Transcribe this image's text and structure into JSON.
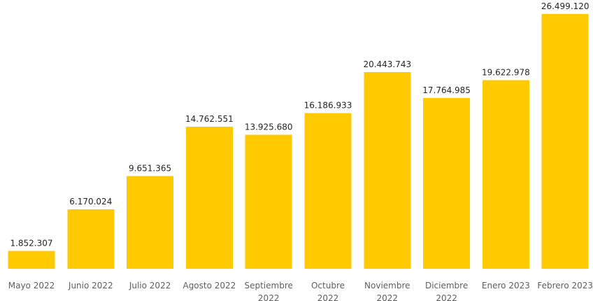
{
  "chart_data": {
    "type": "bar",
    "title": "",
    "xlabel": "",
    "ylabel": "",
    "categories": [
      [
        "Mayo 2022"
      ],
      [
        "Junio 2022"
      ],
      [
        "Julio 2022"
      ],
      [
        "Agosto 2022"
      ],
      [
        "Septiembre",
        "2022"
      ],
      [
        "Octubre",
        "2022"
      ],
      [
        "Noviembre",
        "2022"
      ],
      [
        "Diciembre",
        "2022"
      ],
      [
        "Enero 2023"
      ],
      [
        "Febrero 2023"
      ]
    ],
    "values": [
      1852307,
      6170024,
      9651365,
      14762551,
      13925680,
      16186933,
      20443743,
      17764985,
      19622978,
      26499120
    ],
    "data_labels": [
      "1.852.307",
      "6.170.024",
      "9.651.365",
      "14.762.551",
      "13.925.680",
      "16.186.933",
      "20.443.743",
      "17.764.985",
      "19.622.978",
      "26.499.120"
    ],
    "ylim": [
      0,
      26499120
    ],
    "bar_color": "#FFCA00",
    "grid": false,
    "legend": "none"
  }
}
